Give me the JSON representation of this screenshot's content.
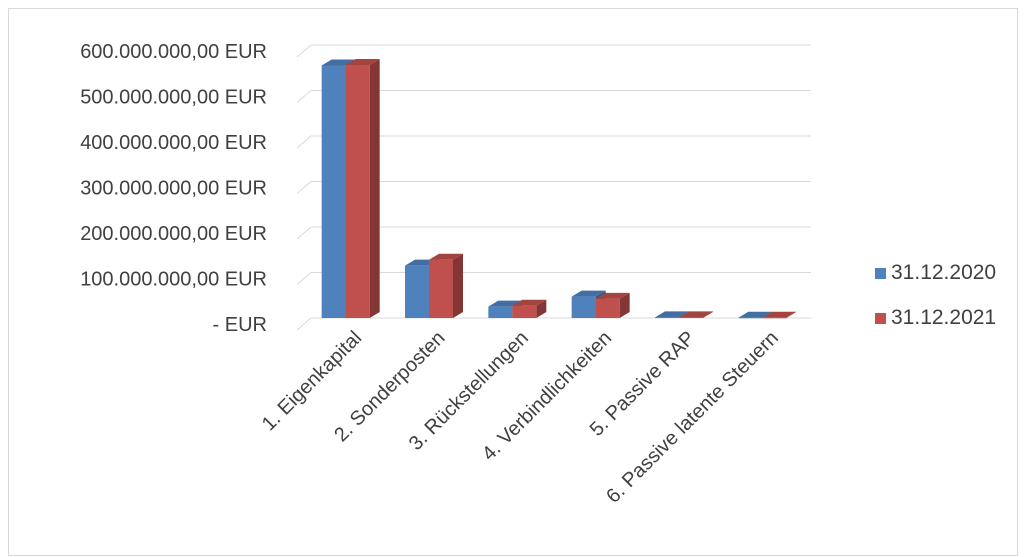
{
  "chart_data": {
    "type": "bar",
    "categories": [
      "1. Eigenkapital",
      "2. Sonderposten",
      "3. Rückstellungen",
      "4. Verbindlichkeiten",
      "5. Passive RAP",
      "6. Passive latente Steuern"
    ],
    "series": [
      {
        "name": "31.12.2020",
        "color": "#4f81bd",
        "values": [
          555000000,
          115000000,
          25000000,
          47000000,
          1500000,
          500000
        ]
      },
      {
        "name": "31.12.2021",
        "color": "#c0504d",
        "values": [
          556000000,
          128000000,
          27000000,
          42000000,
          1500000,
          500000
        ]
      }
    ],
    "y_ticks": [
      {
        "value": 0,
        "label": "-   EUR"
      },
      {
        "value": 100000000,
        "label": "100.000.000,00 EUR"
      },
      {
        "value": 200000000,
        "label": "200.000.000,00 EUR"
      },
      {
        "value": 300000000,
        "label": "300.000.000,00 EUR"
      },
      {
        "value": 400000000,
        "label": "400.000.000,00 EUR"
      },
      {
        "value": 500000000,
        "label": "500.000.000,00 EUR"
      },
      {
        "value": 600000000,
        "label": "600.000.000,00 EUR"
      }
    ],
    "ylim": [
      0,
      600000000
    ],
    "grid": true,
    "legend_position": "right",
    "style": "3d-clustered-column",
    "title": "",
    "xlabel": "",
    "ylabel": ""
  }
}
